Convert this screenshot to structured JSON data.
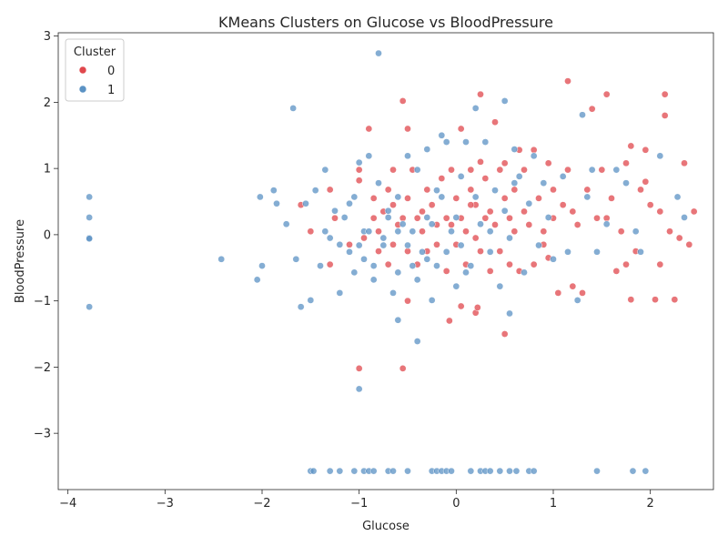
{
  "chart_data": {
    "type": "scatter",
    "title": "KMeans Clusters on Glucose vs BloodPressure",
    "xlabel": "Glucose",
    "ylabel": "BloodPressure",
    "xlim": [
      -4.1,
      2.65
    ],
    "ylim": [
      -3.85,
      3.05
    ],
    "xticks": [
      -4,
      -3,
      -2,
      -1,
      0,
      1,
      2
    ],
    "yticks": [
      -3,
      -2,
      -1,
      0,
      1,
      2,
      3
    ],
    "xtick_labels": [
      "−4",
      "−3",
      "−2",
      "−1",
      "0",
      "1",
      "2"
    ],
    "ytick_labels": [
      "−3",
      "−2",
      "−1",
      "0",
      "1",
      "2",
      "3"
    ],
    "grid": false,
    "legend": {
      "title": "Cluster",
      "placement": "top-left",
      "entries": [
        {
          "label": "0",
          "color": "#e0474c"
        },
        {
          "label": "1",
          "color": "#5b92c4"
        }
      ]
    },
    "series": [
      {
        "name": "0",
        "color": "#e0474c",
        "points": [
          [
            -1.0,
            -2.02
          ],
          [
            -0.55,
            -2.02
          ],
          [
            -0.5,
            -1.0
          ],
          [
            -0.07,
            -1.3
          ],
          [
            0.05,
            -1.08
          ],
          [
            0.2,
            -1.18
          ],
          [
            0.5,
            -1.5
          ],
          [
            0.22,
            -1.1
          ],
          [
            -1.6,
            0.45
          ],
          [
            -1.5,
            0.05
          ],
          [
            -1.3,
            -0.45
          ],
          [
            -1.3,
            0.68
          ],
          [
            -1.25,
            0.25
          ],
          [
            -1.1,
            -0.15
          ],
          [
            -1.0,
            0.98
          ],
          [
            -1.0,
            0.82
          ],
          [
            -0.95,
            -0.05
          ],
          [
            -0.9,
            1.6
          ],
          [
            -0.85,
            0.55
          ],
          [
            -0.85,
            0.25
          ],
          [
            -0.8,
            0.05
          ],
          [
            -0.8,
            -0.25
          ],
          [
            -0.75,
            0.35
          ],
          [
            -0.7,
            -0.45
          ],
          [
            -0.7,
            0.68
          ],
          [
            -0.65,
            0.98
          ],
          [
            -0.65,
            0.45
          ],
          [
            -0.65,
            -0.15
          ],
          [
            -0.6,
            0.15
          ],
          [
            -0.55,
            0.25
          ],
          [
            -0.5,
            -0.25
          ],
          [
            -0.5,
            0.55
          ],
          [
            -0.55,
            2.02
          ],
          [
            -0.5,
            1.6
          ],
          [
            -0.45,
            0.98
          ],
          [
            -0.4,
            0.25
          ],
          [
            -0.4,
            -0.45
          ],
          [
            -0.35,
            0.05
          ],
          [
            -0.3,
            0.68
          ],
          [
            -0.3,
            -0.25
          ],
          [
            -0.25,
            0.45
          ],
          [
            -0.2,
            0.15
          ],
          [
            -0.2,
            -0.15
          ],
          [
            -0.15,
            0.85
          ],
          [
            -0.1,
            0.25
          ],
          [
            -0.1,
            -0.55
          ],
          [
            -0.05,
            0.98
          ],
          [
            0.0,
            0.55
          ],
          [
            0.0,
            -0.15
          ],
          [
            0.05,
            1.6
          ],
          [
            0.05,
            0.25
          ],
          [
            0.1,
            0.05
          ],
          [
            0.1,
            -0.45
          ],
          [
            0.15,
            0.98
          ],
          [
            0.15,
            0.68
          ],
          [
            0.2,
            -0.05
          ],
          [
            0.2,
            0.45
          ],
          [
            0.25,
            2.12
          ],
          [
            0.25,
            1.1
          ],
          [
            0.25,
            -0.25
          ],
          [
            0.3,
            0.85
          ],
          [
            0.35,
            0.35
          ],
          [
            0.35,
            -0.55
          ],
          [
            0.4,
            1.7
          ],
          [
            0.4,
            0.15
          ],
          [
            0.45,
            0.98
          ],
          [
            0.45,
            -0.25
          ],
          [
            0.5,
            0.55
          ],
          [
            0.5,
            1.08
          ],
          [
            0.55,
            0.25
          ],
          [
            0.55,
            -0.45
          ],
          [
            0.6,
            0.68
          ],
          [
            0.65,
            1.28
          ],
          [
            0.65,
            -0.55
          ],
          [
            0.7,
            0.35
          ],
          [
            0.7,
            0.98
          ],
          [
            0.75,
            0.15
          ],
          [
            0.8,
            1.28
          ],
          [
            0.8,
            -0.45
          ],
          [
            0.85,
            0.55
          ],
          [
            0.9,
            0.05
          ],
          [
            0.95,
            1.08
          ],
          [
            0.95,
            -0.35
          ],
          [
            1.0,
            0.68
          ],
          [
            1.0,
            0.25
          ],
          [
            1.05,
            -0.88
          ],
          [
            1.1,
            0.45
          ],
          [
            1.15,
            2.32
          ],
          [
            1.15,
            0.98
          ],
          [
            1.2,
            -0.78
          ],
          [
            1.25,
            0.15
          ],
          [
            1.3,
            -0.88
          ],
          [
            1.35,
            0.68
          ],
          [
            1.4,
            1.9
          ],
          [
            1.45,
            0.25
          ],
          [
            1.5,
            0.98
          ],
          [
            1.55,
            2.12
          ],
          [
            1.6,
            0.55
          ],
          [
            1.65,
            -0.55
          ],
          [
            1.7,
            0.05
          ],
          [
            1.75,
            -0.45
          ],
          [
            1.75,
            1.08
          ],
          [
            1.8,
            -0.98
          ],
          [
            1.8,
            1.34
          ],
          [
            1.85,
            -0.25
          ],
          [
            1.9,
            0.68
          ],
          [
            1.95,
            1.28
          ],
          [
            1.95,
            0.8
          ],
          [
            2.0,
            0.45
          ],
          [
            2.05,
            -0.98
          ],
          [
            2.1,
            0.35
          ],
          [
            2.1,
            -0.45
          ],
          [
            2.15,
            2.12
          ],
          [
            2.15,
            1.8
          ],
          [
            2.2,
            0.05
          ],
          [
            2.25,
            -0.98
          ],
          [
            2.3,
            -0.05
          ],
          [
            2.35,
            1.08
          ],
          [
            2.4,
            -0.15
          ],
          [
            2.45,
            0.35
          ],
          [
            1.2,
            0.35
          ],
          [
            0.9,
            -0.15
          ],
          [
            0.6,
            0.05
          ],
          [
            0.3,
            0.25
          ],
          [
            -0.05,
            0.15
          ],
          [
            -0.35,
            0.35
          ],
          [
            0.15,
            0.45
          ],
          [
            1.55,
            0.25
          ]
        ]
      },
      {
        "name": "1",
        "color": "#5b92c4",
        "points": [
          [
            -3.78,
            0.57
          ],
          [
            -3.78,
            0.26
          ],
          [
            -3.78,
            -0.05
          ],
          [
            -3.78,
            -0.06
          ],
          [
            -3.78,
            -1.09
          ],
          [
            -2.42,
            -0.37
          ],
          [
            -2.05,
            -0.68
          ],
          [
            -2.02,
            0.57
          ],
          [
            -2.0,
            -0.47
          ],
          [
            -1.88,
            0.67
          ],
          [
            -1.85,
            0.47
          ],
          [
            -1.75,
            0.16
          ],
          [
            -1.68,
            1.91
          ],
          [
            -1.65,
            -0.37
          ],
          [
            -1.6,
            -1.09
          ],
          [
            -1.55,
            0.47
          ],
          [
            -1.5,
            -0.99
          ],
          [
            -1.45,
            0.67
          ],
          [
            -1.4,
            -0.47
          ],
          [
            -1.35,
            0.05
          ],
          [
            -1.35,
            0.98
          ],
          [
            -1.3,
            -0.05
          ],
          [
            -1.25,
            0.36
          ],
          [
            -1.2,
            -0.88
          ],
          [
            -1.15,
            0.26
          ],
          [
            -1.1,
            -0.26
          ],
          [
            -1.05,
            0.57
          ],
          [
            -1.05,
            -0.57
          ],
          [
            -1.0,
            1.09
          ],
          [
            -1.0,
            -2.33
          ],
          [
            -0.95,
            0.05
          ],
          [
            -0.9,
            1.19
          ],
          [
            -0.85,
            -0.68
          ],
          [
            -0.8,
            0.78
          ],
          [
            -0.8,
            2.74
          ],
          [
            -0.75,
            -0.16
          ],
          [
            -0.7,
            0.36
          ],
          [
            -0.65,
            -0.88
          ],
          [
            -0.6,
            -1.29
          ],
          [
            -0.6,
            0.57
          ],
          [
            -0.55,
            0.16
          ],
          [
            -0.5,
            1.19
          ],
          [
            -0.45,
            -0.47
          ],
          [
            -0.4,
            -1.61
          ],
          [
            -0.4,
            0.98
          ],
          [
            -0.35,
            -0.26
          ],
          [
            -0.3,
            1.29
          ],
          [
            -0.3,
            0.26
          ],
          [
            -0.25,
            -0.99
          ],
          [
            -0.2,
            0.67
          ],
          [
            -0.15,
            1.5
          ],
          [
            -0.1,
            -0.26
          ],
          [
            -0.1,
            1.4
          ],
          [
            -0.05,
            0.05
          ],
          [
            0.0,
            -0.78
          ],
          [
            0.05,
            0.88
          ],
          [
            0.1,
            1.4
          ],
          [
            0.15,
            -0.47
          ],
          [
            0.2,
            1.91
          ],
          [
            0.25,
            0.16
          ],
          [
            0.3,
            1.4
          ],
          [
            0.35,
            -0.26
          ],
          [
            0.4,
            0.67
          ],
          [
            0.45,
            -0.78
          ],
          [
            0.5,
            2.02
          ],
          [
            0.5,
            0.36
          ],
          [
            0.55,
            -1.19
          ],
          [
            0.6,
            1.29
          ],
          [
            0.65,
            0.88
          ],
          [
            0.7,
            -0.57
          ],
          [
            0.75,
            0.47
          ],
          [
            0.8,
            1.19
          ],
          [
            0.85,
            -0.16
          ],
          [
            0.9,
            0.78
          ],
          [
            0.95,
            0.26
          ],
          [
            1.0,
            -0.37
          ],
          [
            1.1,
            0.88
          ],
          [
            1.15,
            -0.26
          ],
          [
            1.25,
            -0.99
          ],
          [
            1.3,
            1.81
          ],
          [
            1.35,
            0.57
          ],
          [
            1.4,
            0.98
          ],
          [
            1.45,
            -0.26
          ],
          [
            1.55,
            0.16
          ],
          [
            1.65,
            0.98
          ],
          [
            1.75,
            0.78
          ],
          [
            1.85,
            0.05
          ],
          [
            1.9,
            -0.26
          ],
          [
            2.1,
            1.19
          ],
          [
            2.28,
            0.57
          ],
          [
            2.35,
            0.26
          ],
          [
            -1.5,
            -3.57
          ],
          [
            -1.47,
            -3.57
          ],
          [
            -1.3,
            -3.57
          ],
          [
            -1.2,
            -3.57
          ],
          [
            -1.05,
            -3.57
          ],
          [
            -0.95,
            -3.57
          ],
          [
            -0.9,
            -3.57
          ],
          [
            -0.85,
            -3.57
          ],
          [
            -0.7,
            -3.57
          ],
          [
            -0.65,
            -3.57
          ],
          [
            -0.5,
            -3.57
          ],
          [
            -0.25,
            -3.57
          ],
          [
            -0.2,
            -3.57
          ],
          [
            -0.15,
            -3.57
          ],
          [
            -0.1,
            -3.57
          ],
          [
            -0.05,
            -3.57
          ],
          [
            0.15,
            -3.57
          ],
          [
            0.25,
            -3.57
          ],
          [
            0.3,
            -3.57
          ],
          [
            0.35,
            -3.57
          ],
          [
            0.45,
            -3.57
          ],
          [
            0.55,
            -3.57
          ],
          [
            0.62,
            -3.57
          ],
          [
            0.75,
            -3.57
          ],
          [
            0.8,
            -3.57
          ],
          [
            1.45,
            -3.57
          ],
          [
            1.82,
            -3.57
          ],
          [
            1.95,
            -3.57
          ],
          [
            -1.2,
            -0.15
          ],
          [
            -0.95,
            -0.37
          ],
          [
            -0.75,
            -0.05
          ],
          [
            -0.6,
            -0.57
          ],
          [
            -0.45,
            0.05
          ],
          [
            -0.2,
            -0.47
          ],
          [
            0.0,
            0.26
          ],
          [
            0.1,
            -0.57
          ],
          [
            -0.9,
            0.05
          ],
          [
            -0.7,
            0.26
          ],
          [
            -0.5,
            -0.16
          ],
          [
            -0.3,
            -0.37
          ],
          [
            -1.1,
            0.47
          ],
          [
            0.35,
            0.05
          ],
          [
            0.55,
            -0.05
          ],
          [
            -0.15,
            0.57
          ],
          [
            -0.4,
            -0.68
          ],
          [
            -0.85,
            -0.47
          ],
          [
            -1.0,
            -0.16
          ],
          [
            0.2,
            0.57
          ],
          [
            0.6,
            0.78
          ],
          [
            -0.6,
            0.05
          ],
          [
            -0.25,
            0.16
          ],
          [
            0.05,
            -0.16
          ]
        ]
      }
    ]
  }
}
